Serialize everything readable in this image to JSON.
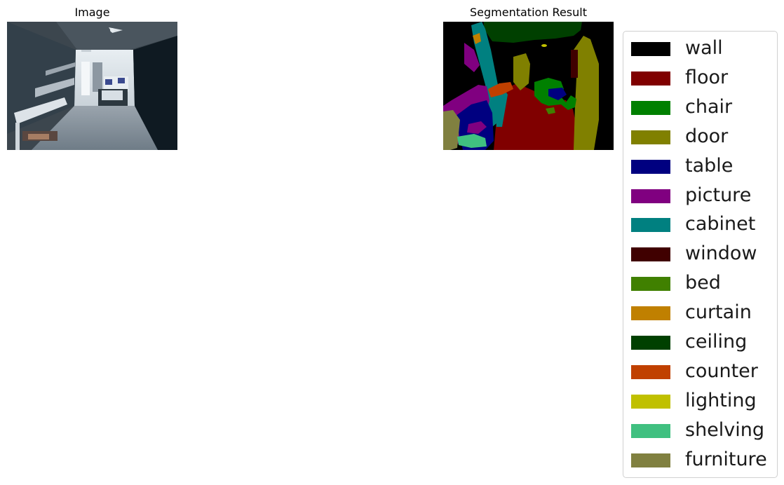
{
  "panels": {
    "left_title": "Image",
    "right_title": "Segmentation Result"
  },
  "legend": {
    "items": [
      {
        "label": "wall",
        "color": "#000000"
      },
      {
        "label": "floor",
        "color": "#800000"
      },
      {
        "label": "chair",
        "color": "#008000"
      },
      {
        "label": "door",
        "color": "#808000"
      },
      {
        "label": "table",
        "color": "#000080"
      },
      {
        "label": "picture",
        "color": "#800080"
      },
      {
        "label": "cabinet",
        "color": "#008080"
      },
      {
        "label": "window",
        "color": "#400000"
      },
      {
        "label": "bed",
        "color": "#408000"
      },
      {
        "label": "curtain",
        "color": "#c08000"
      },
      {
        "label": "ceiling",
        "color": "#004000"
      },
      {
        "label": "counter",
        "color": "#c04000"
      },
      {
        "label": "lighting",
        "color": "#c0c000"
      },
      {
        "label": "shelving",
        "color": "#40c080"
      },
      {
        "label": "furniture",
        "color": "#808040"
      }
    ]
  }
}
